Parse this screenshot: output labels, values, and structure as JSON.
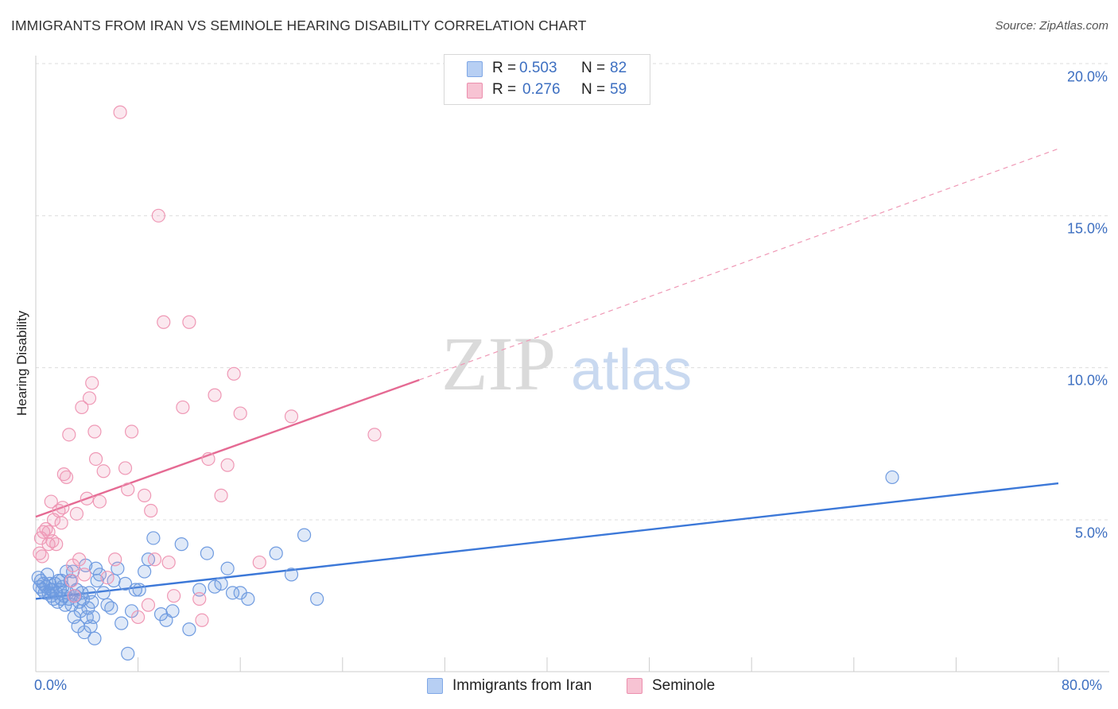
{
  "header": {
    "title": "IMMIGRANTS FROM IRAN VS SEMINOLE HEARING DISABILITY CORRELATION CHART",
    "source": "Source: ZipAtlas.com"
  },
  "watermark": {
    "zip": "ZIP",
    "atlas": "atlas"
  },
  "legend": {
    "r_label": "R =",
    "n_label": "N =",
    "series": [
      {
        "name": "Immigrants from Iran",
        "r": "0.503",
        "n": "82",
        "color": "#7fa7e6",
        "fill": "#b7cff3"
      },
      {
        "name": "Seminole",
        "r": "0.276",
        "n": "59",
        "color": "#ec8fae",
        "fill": "#f7c3d3"
      }
    ]
  },
  "chart_data": {
    "type": "scatter",
    "title": "IMMIGRANTS FROM IRAN VS SEMINOLE HEARING DISABILITY CORRELATION CHART",
    "xlabel": "",
    "ylabel": "Hearing Disability",
    "xlim": [
      0,
      80
    ],
    "ylim": [
      0,
      20.5
    ],
    "x_tick_labels": [
      "0.0%",
      "80.0%"
    ],
    "y_ticks": [
      5,
      10,
      15,
      20
    ],
    "y_tick_labels": [
      "5.0%",
      "10.0%",
      "15.0%",
      "20.0%"
    ],
    "grid": "horizontal dashed",
    "legend_position": "top-center",
    "series": [
      {
        "name": "Immigrants from Iran",
        "color": "#3c78d8",
        "marker_color": "#6f9be0",
        "trend": {
          "x": [
            0,
            80
          ],
          "y": [
            2.4,
            6.2
          ],
          "style": "solid"
        },
        "points": [
          [
            0.2,
            3.1
          ],
          [
            0.3,
            2.8
          ],
          [
            0.4,
            3.0
          ],
          [
            0.5,
            2.7
          ],
          [
            0.6,
            2.9
          ],
          [
            0.7,
            2.6
          ],
          [
            0.8,
            2.8
          ],
          [
            0.9,
            3.2
          ],
          [
            1.0,
            2.6
          ],
          [
            1.1,
            2.9
          ],
          [
            1.2,
            2.5
          ],
          [
            1.3,
            2.7
          ],
          [
            1.4,
            2.4
          ],
          [
            1.5,
            2.9
          ],
          [
            1.6,
            2.6
          ],
          [
            1.7,
            2.3
          ],
          [
            1.8,
            3.0
          ],
          [
            1.9,
            2.7
          ],
          [
            2.0,
            2.4
          ],
          [
            2.1,
            2.8
          ],
          [
            2.2,
            2.5
          ],
          [
            2.3,
            2.2
          ],
          [
            2.4,
            3.3
          ],
          [
            2.5,
            2.6
          ],
          [
            2.6,
            2.4
          ],
          [
            2.7,
            3.0
          ],
          [
            2.8,
            2.2
          ],
          [
            2.9,
            3.3
          ],
          [
            3.0,
            1.8
          ],
          [
            3.1,
            2.5
          ],
          [
            3.2,
            2.7
          ],
          [
            3.3,
            1.5
          ],
          [
            3.4,
            2.3
          ],
          [
            3.5,
            2.0
          ],
          [
            3.6,
            2.6
          ],
          [
            3.7,
            2.4
          ],
          [
            3.8,
            1.3
          ],
          [
            3.9,
            3.5
          ],
          [
            4.0,
            1.8
          ],
          [
            4.1,
            2.1
          ],
          [
            4.2,
            2.6
          ],
          [
            4.3,
            1.5
          ],
          [
            4.4,
            2.3
          ],
          [
            4.5,
            1.8
          ],
          [
            4.6,
            1.1
          ],
          [
            4.7,
            3.4
          ],
          [
            4.8,
            3.0
          ],
          [
            5.0,
            3.2
          ],
          [
            5.3,
            2.6
          ],
          [
            5.6,
            2.2
          ],
          [
            5.9,
            2.1
          ],
          [
            6.1,
            3.0
          ],
          [
            6.4,
            3.4
          ],
          [
            6.7,
            1.6
          ],
          [
            7.0,
            2.9
          ],
          [
            7.2,
            0.6
          ],
          [
            7.5,
            2.0
          ],
          [
            7.8,
            2.7
          ],
          [
            8.1,
            2.7
          ],
          [
            8.5,
            3.3
          ],
          [
            8.8,
            3.7
          ],
          [
            9.2,
            4.4
          ],
          [
            9.8,
            1.9
          ],
          [
            10.2,
            1.7
          ],
          [
            10.7,
            2.0
          ],
          [
            11.4,
            4.2
          ],
          [
            12.0,
            1.4
          ],
          [
            12.8,
            2.7
          ],
          [
            13.4,
            3.9
          ],
          [
            14.0,
            2.8
          ],
          [
            14.5,
            2.9
          ],
          [
            15.0,
            3.4
          ],
          [
            15.4,
            2.6
          ],
          [
            16.0,
            2.6
          ],
          [
            16.6,
            2.4
          ],
          [
            18.8,
            3.9
          ],
          [
            20.0,
            3.2
          ],
          [
            21.0,
            4.5
          ],
          [
            22.0,
            2.4
          ],
          [
            67.0,
            6.4
          ],
          [
            1.2,
            2.7
          ],
          [
            2.0,
            3.0
          ]
        ]
      },
      {
        "name": "Seminole",
        "color": "#e56a93",
        "marker_color": "#ef98b5",
        "trend": {
          "x": [
            0,
            30
          ],
          "y": [
            5.1,
            9.6
          ],
          "style": "solid",
          "extended_to": [
            80,
            17.2
          ],
          "extended_style": "dashed"
        },
        "points": [
          [
            0.3,
            3.9
          ],
          [
            0.4,
            4.4
          ],
          [
            0.6,
            4.6
          ],
          [
            0.8,
            4.7
          ],
          [
            1.0,
            4.2
          ],
          [
            1.2,
            5.6
          ],
          [
            1.4,
            5.0
          ],
          [
            1.6,
            4.2
          ],
          [
            1.8,
            5.3
          ],
          [
            2.0,
            4.9
          ],
          [
            2.2,
            6.5
          ],
          [
            2.4,
            6.4
          ],
          [
            2.6,
            7.8
          ],
          [
            2.8,
            3.0
          ],
          [
            3.0,
            2.5
          ],
          [
            3.2,
            5.2
          ],
          [
            3.4,
            3.7
          ],
          [
            3.6,
            8.7
          ],
          [
            4.0,
            5.7
          ],
          [
            4.2,
            9.0
          ],
          [
            4.4,
            9.5
          ],
          [
            4.7,
            7.0
          ],
          [
            5.0,
            5.6
          ],
          [
            5.3,
            6.6
          ],
          [
            5.6,
            3.1
          ],
          [
            6.2,
            3.7
          ],
          [
            6.6,
            18.4
          ],
          [
            7.0,
            6.7
          ],
          [
            7.2,
            6.0
          ],
          [
            7.5,
            7.9
          ],
          [
            8.0,
            1.8
          ],
          [
            8.5,
            5.8
          ],
          [
            8.8,
            2.2
          ],
          [
            9.0,
            5.3
          ],
          [
            9.3,
            3.7
          ],
          [
            9.6,
            15.0
          ],
          [
            10.0,
            11.5
          ],
          [
            10.4,
            3.6
          ],
          [
            10.8,
            2.5
          ],
          [
            11.5,
            8.7
          ],
          [
            12.0,
            11.5
          ],
          [
            13.0,
            1.7
          ],
          [
            13.5,
            7.0
          ],
          [
            14.0,
            9.1
          ],
          [
            14.5,
            5.8
          ],
          [
            15.0,
            6.8
          ],
          [
            15.5,
            9.8
          ],
          [
            16.0,
            8.5
          ],
          [
            17.5,
            3.6
          ],
          [
            20.0,
            8.4
          ],
          [
            26.5,
            7.8
          ],
          [
            0.5,
            3.8
          ],
          [
            1.0,
            4.6
          ],
          [
            1.3,
            4.3
          ],
          [
            2.1,
            5.4
          ],
          [
            2.9,
            3.5
          ],
          [
            3.8,
            3.2
          ],
          [
            4.6,
            7.9
          ],
          [
            12.8,
            2.4
          ]
        ]
      }
    ]
  }
}
